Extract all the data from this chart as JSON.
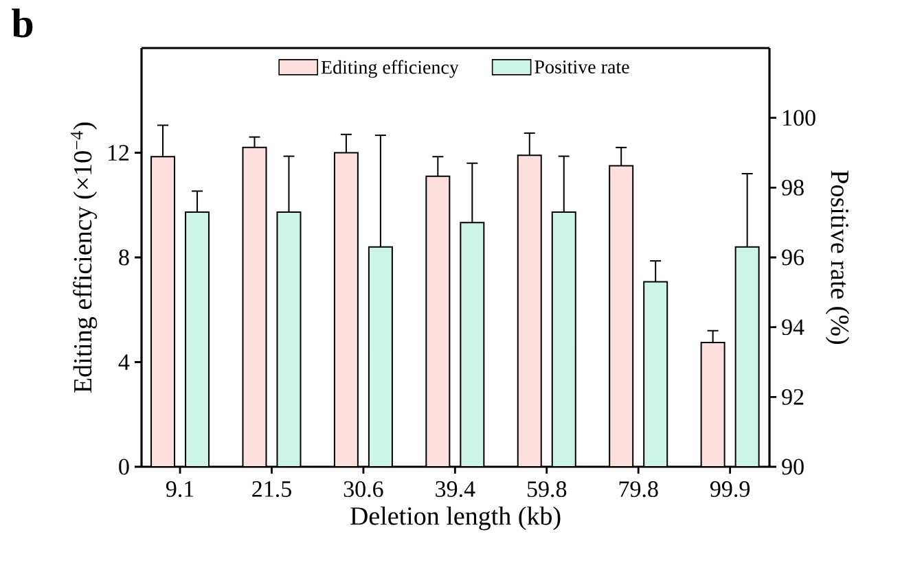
{
  "chart_data": {
    "type": "bar",
    "categories": [
      "9.1",
      "21.5",
      "30.6",
      "39.4",
      "59.8",
      "79.8",
      "99.9"
    ],
    "xlabel": "Deletion length (kb)",
    "ylabel": "Editing efficiency (×10$^{−4}$)",
    "y2label": "Positive rate (%)",
    "ylim": [
      0,
      16
    ],
    "yticks": [
      0,
      4,
      8,
      12
    ],
    "y2lim": [
      90,
      102
    ],
    "y2ticks": [
      90,
      92,
      94,
      96,
      98,
      100
    ],
    "legend": "top",
    "annotations": [
      "**b**"
    ],
    "series": [
      {
        "name": "Editing efficiency",
        "color": "#fde0dd",
        "values": [
          11.85,
          12.2,
          12.0,
          11.1,
          11.9,
          11.5,
          4.75
        ],
        "errors": [
          [
            11.85,
            13.05
          ],
          [
            12.2,
            12.6
          ],
          [
            12.0,
            12.7
          ],
          [
            11.1,
            11.85
          ],
          [
            11.9,
            12.75
          ],
          [
            11.5,
            12.2
          ],
          [
            4.75,
            5.2
          ]
        ]
      },
      {
        "name": "Positive rate",
        "color": "#ccf5e5",
        "axis": "y2",
        "values": [
          97.3,
          97.3,
          96.3,
          97.0,
          97.3,
          95.3,
          96.3
        ],
        "errors": [
          [
            97.3,
            97.9
          ],
          [
            97.3,
            98.9
          ],
          [
            96.3,
            99.5
          ],
          [
            97.0,
            98.7
          ],
          [
            97.3,
            98.9
          ],
          [
            95.3,
            95.9
          ],
          [
            96.3,
            98.4
          ]
        ]
      }
    ]
  }
}
